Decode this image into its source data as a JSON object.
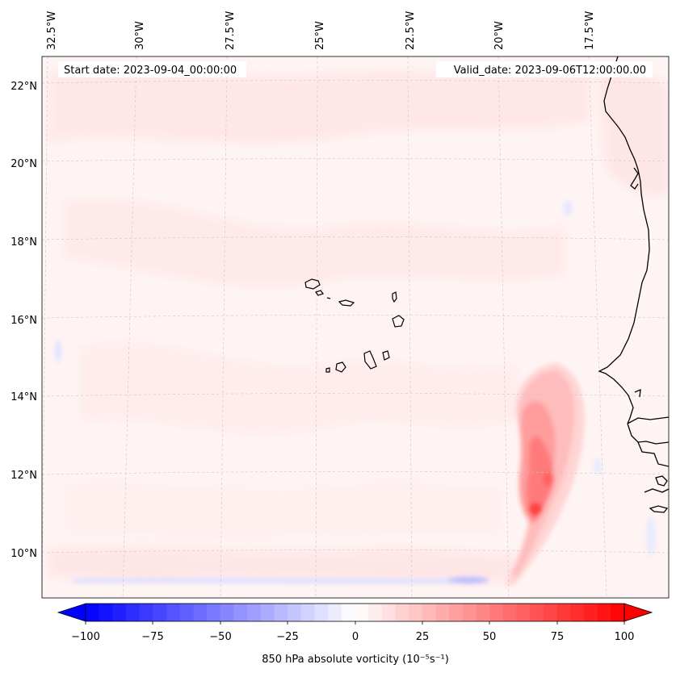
{
  "map": {
    "title_left": "Start date: 2023-09-04_00:00:00",
    "title_right": "Valid_date: 2023-09-06T12:00:00.00",
    "lon_labels": [
      "32.5°W",
      "30°W",
      "27.5°W",
      "25°W",
      "22.5°W",
      "20°W",
      "17.5°W"
    ],
    "lat_labels": [
      "22°N",
      "20°N",
      "18°N",
      "16°N",
      "14°N",
      "12°N",
      "10°N"
    ],
    "features": [
      "Cabo Verde islands",
      "West African coastline (Mauritania, Senegal, Gambia, Guinea-Bissau)"
    ],
    "colors": {
      "positive": "#ff0000",
      "negative": "#0000ff",
      "neutral": "#ffffff",
      "coastline": "#000000",
      "grid": "#bbbbbb"
    }
  },
  "colorbar": {
    "label": "850 hPa absolute vorticity (10⁻⁵s⁻¹)",
    "ticks": [
      "−100",
      "−75",
      "−50",
      "−25",
      "0",
      "25",
      "50",
      "75",
      "100"
    ],
    "min": -100,
    "max": 100,
    "levels": 41,
    "extend": "both",
    "cmap": "bwr"
  }
}
